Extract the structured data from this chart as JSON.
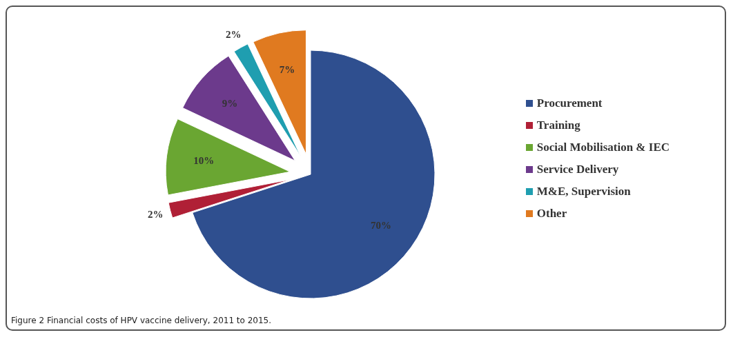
{
  "chart_data": {
    "type": "pie",
    "categories": [
      "Procurement",
      "Training",
      "Social Mobilisation & IEC",
      "Service Delivery",
      "M&E, Supervision",
      "Other"
    ],
    "values": [
      70,
      2,
      10,
      9,
      2,
      7
    ],
    "colors": [
      "#2f4f8f",
      "#b02036",
      "#6aa632",
      "#6c3a8c",
      "#1f9eb0",
      "#e07a20"
    ],
    "value_labels": [
      "70%",
      "2%",
      "10%",
      "9%",
      "2%",
      "7%"
    ],
    "legend": "right",
    "annotations": [
      "Figure 2 Financial costs of HPV vaccine delivery, 2011 to 2015."
    ]
  }
}
